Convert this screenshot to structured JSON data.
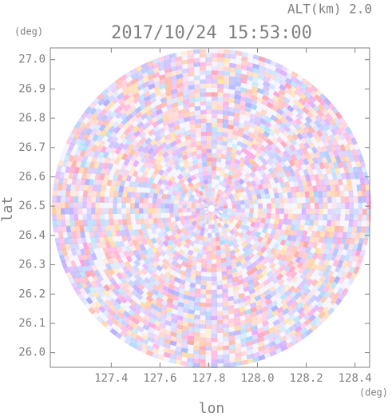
{
  "chart_data": {
    "type": "image",
    "title": "2017/10/24 15:53:00",
    "subtitle": "ALT(km) 2.0",
    "y_unit": "(deg)",
    "x_unit": "(deg)",
    "x_label": "lon",
    "y_label": "lat",
    "xlim": [
      127.15,
      128.46
    ],
    "ylim": [
      25.95,
      27.04
    ],
    "xticks": [
      127.4,
      127.6,
      127.8,
      {
        "value": 128.0,
        "label": "128.0"
      },
      128.2,
      128.4
    ],
    "yticks": [
      {
        "value": 26.0,
        "label": "26.0"
      },
      26.1,
      26.2,
      26.3,
      26.4,
      26.5,
      26.6,
      26.7,
      26.8,
      26.9,
      {
        "value": 27.0,
        "label": "27.0"
      }
    ]
  }
}
